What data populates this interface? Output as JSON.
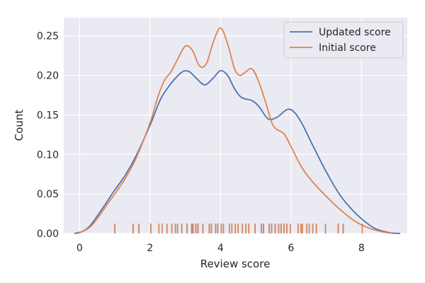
{
  "chart_data": {
    "type": "line",
    "xlabel": "Review score",
    "ylabel": "Count",
    "xlim": [
      -0.45,
      9.3
    ],
    "ylim": [
      0,
      0.273
    ],
    "x_ticks": [
      0,
      2,
      4,
      6,
      8
    ],
    "y_ticks": [
      0.0,
      0.05,
      0.1,
      0.15,
      0.2,
      0.25
    ],
    "x_tick_labels": [
      "0",
      "2",
      "4",
      "6",
      "8"
    ],
    "y_tick_labels": [
      "0.00",
      "0.05",
      "0.10",
      "0.15",
      "0.20",
      "0.25"
    ],
    "grid": true,
    "legend_position": "top-right",
    "series": [
      {
        "name": "Updated score",
        "color": "#4c72b0",
        "x": [
          -0.15,
          0.1,
          0.3,
          0.5,
          0.7,
          1.0,
          1.3,
          1.6,
          2.0,
          2.3,
          2.6,
          2.9,
          3.1,
          3.3,
          3.55,
          3.8,
          4.0,
          4.2,
          4.4,
          4.6,
          4.9,
          5.1,
          5.35,
          5.6,
          5.9,
          6.1,
          6.3,
          6.6,
          7.0,
          7.4,
          7.8,
          8.1,
          8.4,
          8.8,
          9.1
        ],
        "values": [
          0.0,
          0.003,
          0.01,
          0.022,
          0.035,
          0.055,
          0.074,
          0.098,
          0.137,
          0.17,
          0.19,
          0.204,
          0.205,
          0.197,
          0.188,
          0.197,
          0.206,
          0.2,
          0.183,
          0.172,
          0.168,
          0.16,
          0.145,
          0.147,
          0.157,
          0.153,
          0.14,
          0.113,
          0.078,
          0.048,
          0.027,
          0.015,
          0.006,
          0.001,
          0.0
        ]
      },
      {
        "name": "Initial score",
        "color": "#dd8452",
        "x": [
          -0.05,
          0.2,
          0.4,
          0.6,
          0.8,
          1.0,
          1.3,
          1.6,
          2.0,
          2.2,
          2.4,
          2.6,
          2.8,
          3.0,
          3.2,
          3.4,
          3.6,
          3.8,
          4.0,
          4.2,
          4.4,
          4.55,
          4.7,
          4.9,
          5.1,
          5.3,
          5.5,
          5.8,
          6.0,
          6.3,
          6.6,
          7.0,
          7.4,
          7.8,
          8.2,
          8.6,
          8.9
        ],
        "values": [
          0.0,
          0.005,
          0.013,
          0.025,
          0.038,
          0.05,
          0.07,
          0.095,
          0.14,
          0.17,
          0.193,
          0.205,
          0.222,
          0.237,
          0.232,
          0.212,
          0.215,
          0.243,
          0.26,
          0.24,
          0.208,
          0.2,
          0.204,
          0.208,
          0.19,
          0.163,
          0.136,
          0.126,
          0.11,
          0.084,
          0.066,
          0.047,
          0.03,
          0.016,
          0.007,
          0.002,
          0.0
        ]
      }
    ],
    "rug": [
      {
        "name": "Updated score",
        "color": "#4c72b0",
        "x": [
          1.0,
          1.52,
          1.68,
          2.02,
          2.25,
          2.34,
          2.48,
          2.62,
          2.72,
          2.78,
          2.9,
          3.05,
          3.18,
          3.22,
          3.3,
          3.36,
          3.5,
          3.68,
          3.74,
          3.86,
          3.92,
          4.02,
          4.08,
          4.25,
          4.32,
          4.42,
          4.5,
          4.62,
          4.72,
          4.8,
          4.98,
          5.16,
          5.22,
          5.38,
          5.45,
          5.55,
          5.65,
          5.72,
          5.8,
          5.88,
          5.98,
          6.2,
          6.28,
          6.32,
          6.45,
          6.52,
          6.62,
          6.72,
          6.98,
          7.34,
          7.48,
          8.02
        ]
      },
      {
        "name": "Initial score",
        "color": "#dd8452",
        "x": [
          1.0,
          1.52,
          1.68,
          2.02,
          2.25,
          2.34,
          2.48,
          2.62,
          2.72,
          2.78,
          2.9,
          3.05,
          3.18,
          3.22,
          3.3,
          3.36,
          3.5,
          3.68,
          3.74,
          3.86,
          3.92,
          4.02,
          4.08,
          4.25,
          4.32,
          4.42,
          4.5,
          4.62,
          4.72,
          4.8,
          4.98,
          5.16,
          5.22,
          5.38,
          5.45,
          5.55,
          5.65,
          5.72,
          5.8,
          5.88,
          5.98,
          6.2,
          6.28,
          6.32,
          6.45,
          6.52,
          6.62,
          6.72,
          6.98,
          7.34,
          7.48,
          8.02
        ]
      }
    ]
  }
}
